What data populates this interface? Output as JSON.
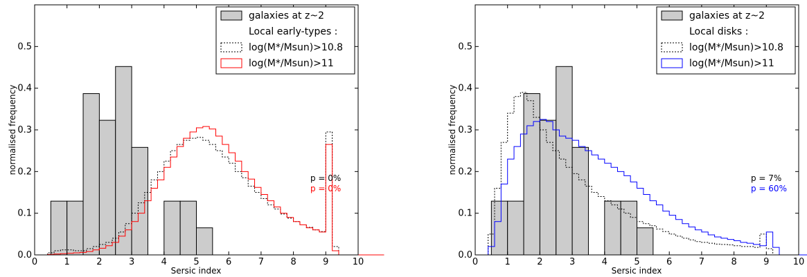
{
  "chart_data": [
    {
      "type": "bar",
      "xlabel": "Sersic index",
      "ylabel": "normalised frequency",
      "xlim": [
        0,
        10
      ],
      "ylim": [
        0,
        0.6
      ],
      "xticks": [
        "0",
        "1",
        "2",
        "3",
        "4",
        "5",
        "6",
        "7",
        "8",
        "9",
        "10"
      ],
      "yticks": [
        "0.0",
        "0.1",
        "0.2",
        "0.3",
        "0.4",
        "0.5"
      ],
      "grid": false,
      "legend_position": "top-right",
      "legend": {
        "bars_label": "galaxies at z~2",
        "header": "Local early-types :",
        "dotted_label": "log(M*/Msun)>10.8",
        "solid_label": "log(M*/Msun)>11"
      },
      "annotations": [
        {
          "text": "p = 0%",
          "color": "#000000"
        },
        {
          "text": "p = 0%",
          "color": "#ff0000"
        }
      ],
      "bars": {
        "bin_width": 0.5,
        "bin_starts": [
          0.5,
          1.0,
          1.5,
          2.0,
          2.5,
          3.0,
          4.0,
          4.5,
          5.0
        ],
        "values": [
          0.129,
          0.129,
          0.387,
          0.323,
          0.452,
          0.258,
          0.129,
          0.129,
          0.065
        ],
        "color": "#cccccc"
      },
      "series": [
        {
          "style": "dotted",
          "color": "#000000",
          "bin_width": 0.2,
          "x0": 0.4,
          "values": [
            0.005,
            0.01,
            0.012,
            0.012,
            0.01,
            0.01,
            0.015,
            0.02,
            0.025,
            0.03,
            0.04,
            0.055,
            0.075,
            0.1,
            0.125,
            0.15,
            0.18,
            0.2,
            0.225,
            0.25,
            0.265,
            0.275,
            0.28,
            0.282,
            0.275,
            0.265,
            0.25,
            0.235,
            0.22,
            0.2,
            0.185,
            0.165,
            0.15,
            0.135,
            0.12,
            0.11,
            0.098,
            0.088,
            0.08,
            0.072,
            0.066,
            0.06,
            0.056,
            0.295,
            0.02,
            0,
            0,
            0,
            0,
            0,
            0,
            0
          ],
          "name": "log(M*/Msun)>10.8"
        },
        {
          "style": "solid",
          "color": "#ff0000",
          "bin_width": 0.2,
          "x0": 0.4,
          "values": [
            0.001,
            0.002,
            0.003,
            0.004,
            0.005,
            0.006,
            0.008,
            0.012,
            0.016,
            0.022,
            0.03,
            0.045,
            0.06,
            0.08,
            0.1,
            0.13,
            0.16,
            0.18,
            0.21,
            0.235,
            0.26,
            0.28,
            0.295,
            0.305,
            0.308,
            0.302,
            0.285,
            0.265,
            0.245,
            0.225,
            0.2,
            0.182,
            0.162,
            0.145,
            0.13,
            0.115,
            0.1,
            0.09,
            0.08,
            0.072,
            0.065,
            0.06,
            0.055,
            0.265,
            0.01,
            0,
            0,
            0,
            0,
            0,
            0,
            0
          ],
          "name": "log(M*/Msun)>11"
        }
      ]
    },
    {
      "type": "bar",
      "xlabel": "Sersic index",
      "ylabel": "normalised frequency",
      "xlim": [
        0,
        10
      ],
      "ylim": [
        0,
        0.6
      ],
      "xticks": [
        "0",
        "1",
        "2",
        "3",
        "4",
        "5",
        "6",
        "7",
        "8",
        "9",
        "10"
      ],
      "yticks": [
        "0.0",
        "0.1",
        "0.2",
        "0.3",
        "0.4",
        "0.5"
      ],
      "grid": false,
      "legend_position": "top-right",
      "legend": {
        "bars_label": "galaxies at z~2",
        "header": "Local disks :",
        "dotted_label": "log(M*/Msun)>10.8",
        "solid_label": "log(M*/Msun)>11"
      },
      "annotations": [
        {
          "text": "p = 7%",
          "color": "#000000"
        },
        {
          "text": "p = 60%",
          "color": "#0000ff"
        }
      ],
      "bars": {
        "bin_width": 0.5,
        "bin_starts": [
          0.5,
          1.0,
          1.5,
          2.0,
          2.5,
          3.0,
          4.0,
          4.5,
          5.0
        ],
        "values": [
          0.129,
          0.129,
          0.387,
          0.323,
          0.452,
          0.258,
          0.129,
          0.129,
          0.065
        ],
        "color": "#cccccc"
      },
      "series": [
        {
          "style": "dotted",
          "color": "#000000",
          "bin_width": 0.2,
          "x0": 0.4,
          "values": [
            0.05,
            0.16,
            0.27,
            0.34,
            0.38,
            0.39,
            0.37,
            0.33,
            0.3,
            0.27,
            0.25,
            0.23,
            0.21,
            0.195,
            0.18,
            0.165,
            0.15,
            0.14,
            0.13,
            0.12,
            0.11,
            0.1,
            0.09,
            0.08,
            0.075,
            0.07,
            0.062,
            0.056,
            0.05,
            0.045,
            0.04,
            0.036,
            0.032,
            0.03,
            0.028,
            0.026,
            0.025,
            0.024,
            0.022,
            0.02,
            0.02,
            0.018,
            0.05,
            0.015,
            0,
            0,
            0,
            0,
            0,
            0,
            0
          ],
          "name": "log(M*/Msun)>10.8"
        },
        {
          "style": "solid",
          "color": "#0000ff",
          "bin_width": 0.2,
          "x0": 0.4,
          "values": [
            0.02,
            0.08,
            0.17,
            0.23,
            0.26,
            0.29,
            0.31,
            0.32,
            0.325,
            0.32,
            0.3,
            0.285,
            0.28,
            0.275,
            0.26,
            0.25,
            0.24,
            0.23,
            0.22,
            0.21,
            0.2,
            0.19,
            0.175,
            0.16,
            0.145,
            0.13,
            0.12,
            0.105,
            0.095,
            0.085,
            0.075,
            0.067,
            0.06,
            0.055,
            0.048,
            0.043,
            0.04,
            0.037,
            0.034,
            0.03,
            0.028,
            0.025,
            0.022,
            0.055,
            0.018,
            0,
            0,
            0,
            0,
            0,
            0,
            0
          ],
          "name": "log(M*/Msun)>11"
        }
      ]
    }
  ]
}
